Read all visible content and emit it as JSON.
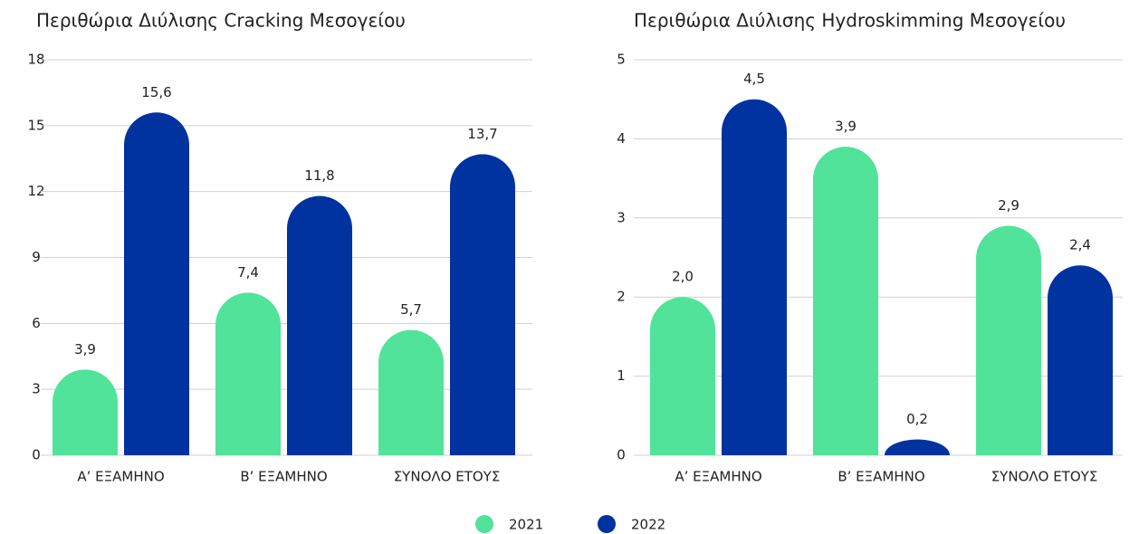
{
  "chart_data": [
    {
      "type": "bar",
      "title": "Περιθώρια Διύλισης Cracking Μεσογείου",
      "categories": [
        "Α’ ΕΞΑΜΗΝΟ",
        "Β’ ΕΞΑΜΗΝΟ",
        "ΣΥΝΟΛΟ ΕΤΟΥΣ"
      ],
      "series": [
        {
          "values": [
            3.9,
            7.4,
            5.7
          ],
          "value_labels": [
            "3,9",
            "7,4",
            "5,7"
          ]
        },
        {
          "values": [
            15.6,
            11.8,
            13.7
          ],
          "value_labels": [
            "15,6",
            "11,8",
            "13,7"
          ]
        }
      ],
      "ylim": [
        0,
        18
      ],
      "yticks": [
        0,
        3,
        6,
        9,
        12,
        15,
        18
      ],
      "grid": true
    },
    {
      "type": "bar",
      "title": "Περιθώρια Διύλισης Hydroskimming Μεσογείου",
      "categories": [
        "Α’ ΕΞΑΜΗΝΟ",
        "Β’ ΕΞΑΜΗΝΟ",
        "ΣΥΝΟΛΟ ΕΤΟΥΣ"
      ],
      "series": [
        {
          "values": [
            2.0,
            3.9,
            2.9
          ],
          "value_labels": [
            "2,0",
            "3,9",
            "2,9"
          ]
        },
        {
          "values": [
            4.5,
            0.2,
            2.4
          ],
          "value_labels": [
            "4,5",
            "0,2",
            "2,4"
          ]
        }
      ],
      "ylim": [
        0,
        5
      ],
      "yticks": [
        0,
        1,
        2,
        3,
        4,
        5
      ],
      "grid": true
    }
  ],
  "legend": [
    {
      "name": "2021",
      "color": "#52e39b"
    },
    {
      "name": "2022",
      "color": "#0033a0"
    }
  ]
}
